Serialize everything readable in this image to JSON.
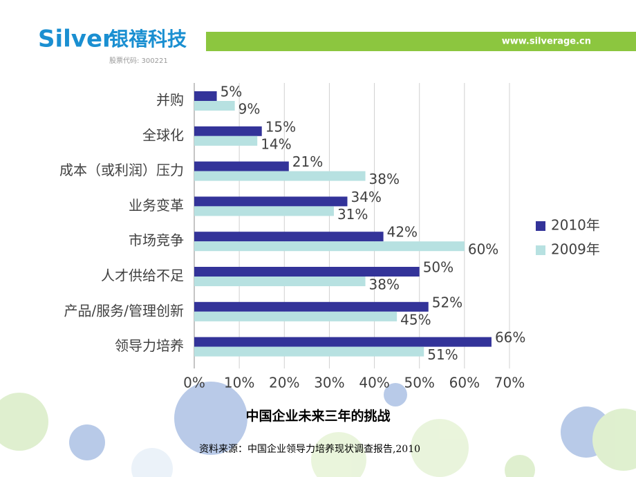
{
  "header": {
    "logo": "Silver",
    "company": "银禧科技",
    "stock_code": "股票代码: 300221",
    "url": "www.silverage.cn"
  },
  "chart_data": {
    "type": "bar",
    "orientation": "horizontal",
    "title": "中国企业未来三年的挑战",
    "source": "资料来源：中国企业领导力培养现状调查报告,2010",
    "categories": [
      "并购",
      "全球化",
      "成本（或利润）压力",
      "业务变革",
      "市场竞争",
      "人才供给不足",
      "产品/服务/管理创新",
      "领导力培养"
    ],
    "series": [
      {
        "name": "2010年",
        "color": "#333399",
        "values": [
          5,
          15,
          21,
          34,
          42,
          50,
          52,
          66
        ],
        "value_labels": [
          "5%",
          "15%",
          "21%",
          "34%",
          "42%",
          "50%",
          "52%",
          "66%"
        ]
      },
      {
        "name": "2009年",
        "color": "#b7e1e1",
        "values": [
          9,
          14,
          38,
          31,
          60,
          38,
          45,
          51
        ],
        "value_labels": [
          "9%",
          "14%",
          "38%",
          "31%",
          "60%",
          "38%",
          "45%",
          "51%"
        ]
      }
    ],
    "xlim": [
      0,
      70
    ],
    "xticks": [
      {
        "value": 0,
        "label": "0%"
      },
      {
        "value": 10,
        "label": "10%"
      },
      {
        "value": 20,
        "label": "20%"
      },
      {
        "value": 30,
        "label": "30%"
      },
      {
        "value": 40,
        "label": "40%"
      },
      {
        "value": 50,
        "label": "50%"
      },
      {
        "value": 60,
        "label": "60%"
      },
      {
        "value": 70,
        "label": "70%"
      }
    ],
    "grid": true,
    "legend": "right"
  }
}
